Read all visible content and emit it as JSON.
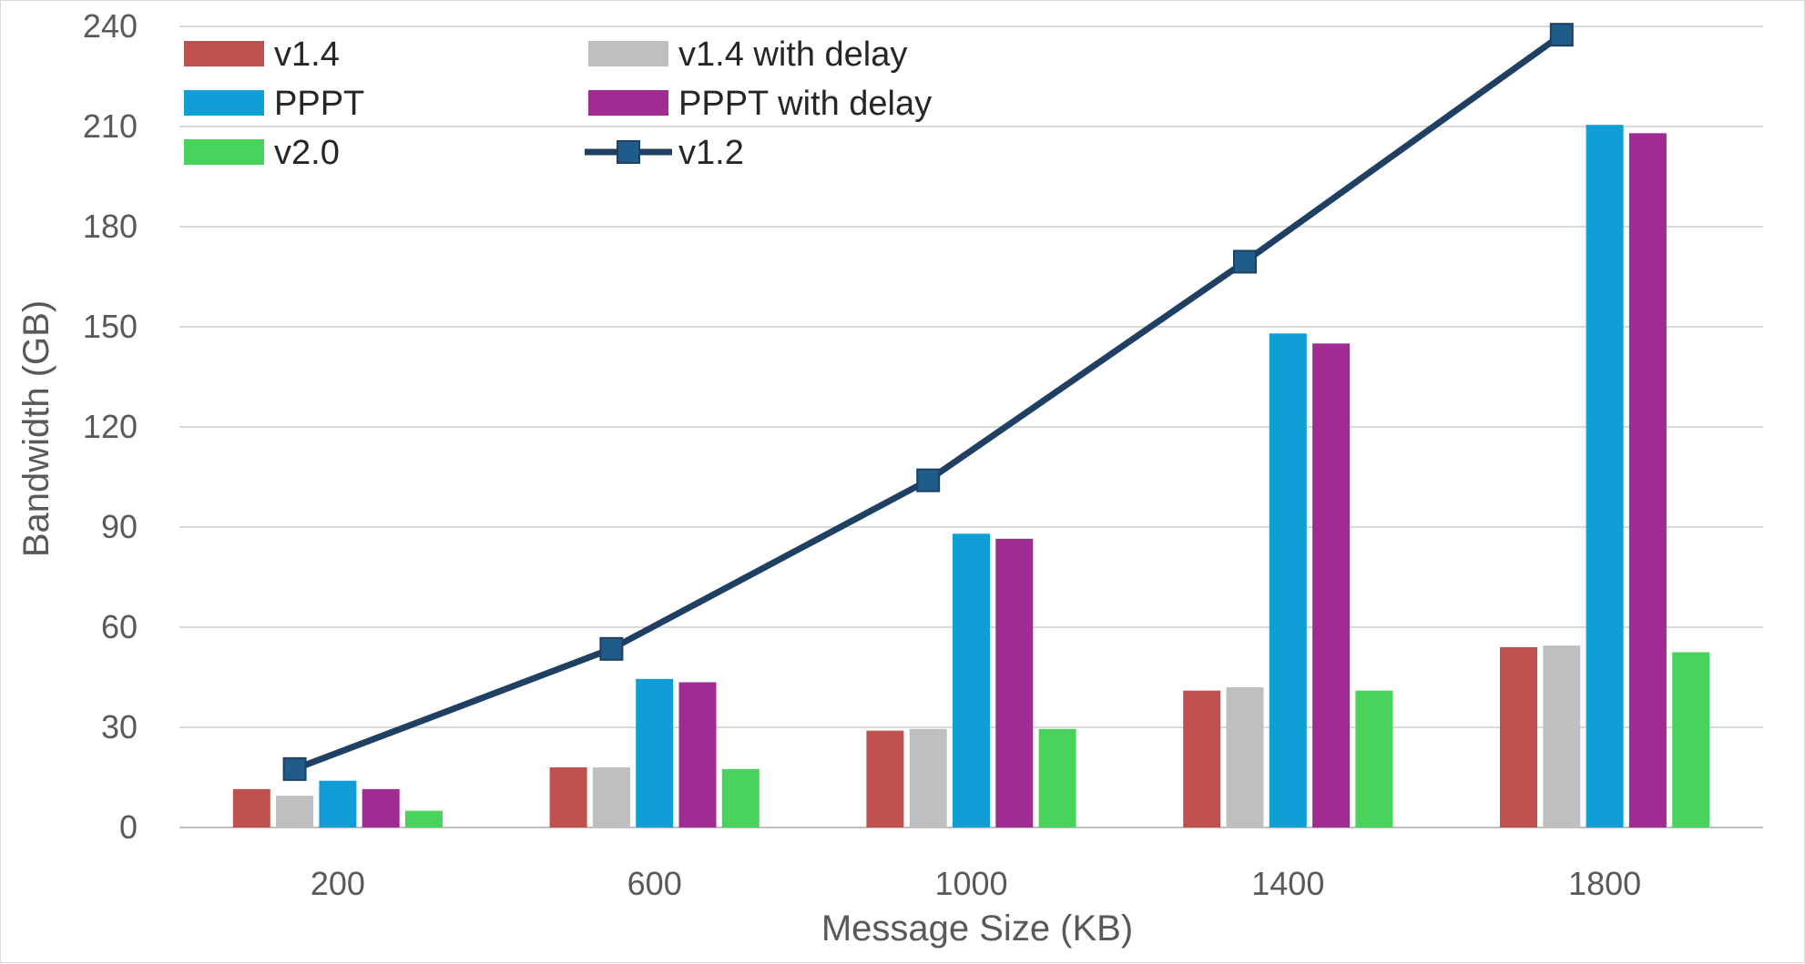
{
  "chart_data": {
    "type": "bar",
    "xlabel": "Message Size (KB)",
    "ylabel": "Bandwidth (GB)",
    "ylim": [
      0,
      240
    ],
    "yticks": [
      "0",
      "30",
      "60",
      "90",
      "120",
      "150",
      "180",
      "210",
      "240"
    ],
    "categories": [
      "200",
      "600",
      "1000",
      "1400",
      "1800"
    ],
    "grid": true,
    "legend_position": "top-left",
    "series": [
      {
        "name": "v1.4",
        "kind": "bar",
        "color": "#C0504D",
        "values": [
          11.5,
          18,
          29,
          41,
          54
        ]
      },
      {
        "name": "v1.4 with delay",
        "kind": "bar",
        "color": "#BFBFBF",
        "values": [
          9.5,
          18,
          29.5,
          42,
          54.5
        ]
      },
      {
        "name": "PPPT",
        "kind": "bar",
        "color": "#0F9ED5",
        "values": [
          14,
          44.5,
          88,
          148,
          210.5
        ]
      },
      {
        "name": "PPPT with delay",
        "kind": "bar",
        "color": "#A02B93",
        "values": [
          11.5,
          43.5,
          86.5,
          145,
          208
        ]
      },
      {
        "name": "v2.0",
        "kind": "bar",
        "color": "#4AD35C",
        "values": [
          5,
          17.5,
          29.5,
          41,
          52.5
        ]
      },
      {
        "name": "v1.2",
        "kind": "line",
        "color": "#1F3F63",
        "marker_color": "#1F5C8A",
        "values": [
          17.5,
          53.5,
          104,
          169.5,
          237.5
        ]
      }
    ]
  }
}
